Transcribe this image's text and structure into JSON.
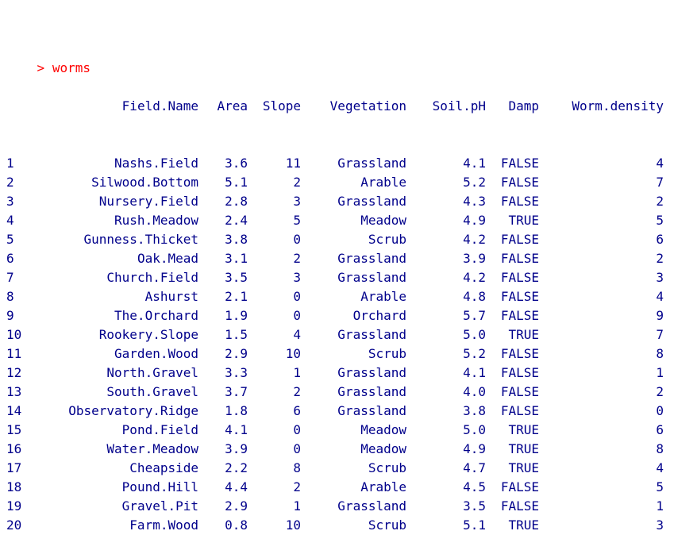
{
  "console": {
    "prompt_symbol": ">",
    "command": "worms"
  },
  "table": {
    "headers": [
      "Field.Name",
      "Area",
      "Slope",
      "Vegetation",
      "Soil.pH",
      "Damp",
      "Worm.density"
    ],
    "rows": [
      [
        "1",
        "Nashs.Field",
        "3.6",
        "11",
        "Grassland",
        "4.1",
        "FALSE",
        "4"
      ],
      [
        "2",
        "Silwood.Bottom",
        "5.1",
        "2",
        "Arable",
        "5.2",
        "FALSE",
        "7"
      ],
      [
        "3",
        "Nursery.Field",
        "2.8",
        "3",
        "Grassland",
        "4.3",
        "FALSE",
        "2"
      ],
      [
        "4",
        "Rush.Meadow",
        "2.4",
        "5",
        "Meadow",
        "4.9",
        "TRUE",
        "5"
      ],
      [
        "5",
        "Gunness.Thicket",
        "3.8",
        "0",
        "Scrub",
        "4.2",
        "FALSE",
        "6"
      ],
      [
        "6",
        "Oak.Mead",
        "3.1",
        "2",
        "Grassland",
        "3.9",
        "FALSE",
        "2"
      ],
      [
        "7",
        "Church.Field",
        "3.5",
        "3",
        "Grassland",
        "4.2",
        "FALSE",
        "3"
      ],
      [
        "8",
        "Ashurst",
        "2.1",
        "0",
        "Arable",
        "4.8",
        "FALSE",
        "4"
      ],
      [
        "9",
        "The.Orchard",
        "1.9",
        "0",
        "Orchard",
        "5.7",
        "FALSE",
        "9"
      ],
      [
        "10",
        "Rookery.Slope",
        "1.5",
        "4",
        "Grassland",
        "5.0",
        "TRUE",
        "7"
      ],
      [
        "11",
        "Garden.Wood",
        "2.9",
        "10",
        "Scrub",
        "5.2",
        "FALSE",
        "8"
      ],
      [
        "12",
        "North.Gravel",
        "3.3",
        "1",
        "Grassland",
        "4.1",
        "FALSE",
        "1"
      ],
      [
        "13",
        "South.Gravel",
        "3.7",
        "2",
        "Grassland",
        "4.0",
        "FALSE",
        "2"
      ],
      [
        "14",
        "Observatory.Ridge",
        "1.8",
        "6",
        "Grassland",
        "3.8",
        "FALSE",
        "0"
      ],
      [
        "15",
        "Pond.Field",
        "4.1",
        "0",
        "Meadow",
        "5.0",
        "TRUE",
        "6"
      ],
      [
        "16",
        "Water.Meadow",
        "3.9",
        "0",
        "Meadow",
        "4.9",
        "TRUE",
        "8"
      ],
      [
        "17",
        "Cheapside",
        "2.2",
        "8",
        "Scrub",
        "4.7",
        "TRUE",
        "4"
      ],
      [
        "18",
        "Pound.Hill",
        "4.4",
        "2",
        "Arable",
        "4.5",
        "FALSE",
        "5"
      ],
      [
        "19",
        "Gravel.Pit",
        "2.9",
        "1",
        "Grassland",
        "3.5",
        "FALSE",
        "1"
      ],
      [
        "20",
        "Farm.Wood",
        "0.8",
        "10",
        "Scrub",
        "5.1",
        "TRUE",
        "3"
      ]
    ]
  },
  "colors": {
    "output_text": "#00008b",
    "prompt_text": "#ff0000",
    "background": "#ffffff"
  }
}
